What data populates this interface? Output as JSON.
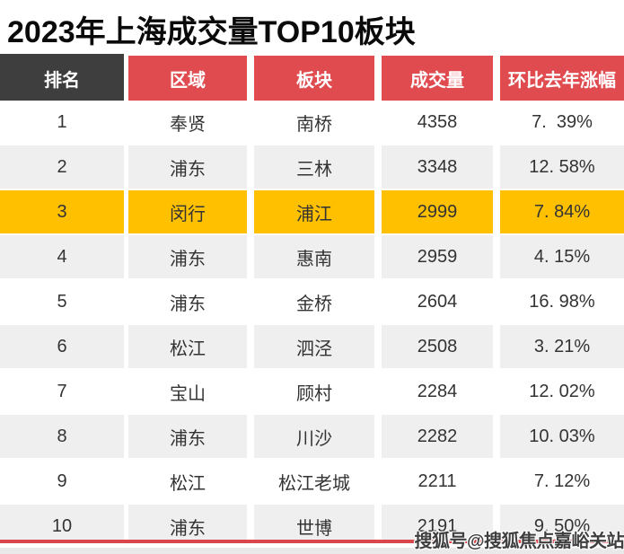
{
  "title": "2023年上海成交量TOP10板块",
  "table": {
    "headers": [
      "排名",
      "区域",
      "板块",
      "成交量",
      "环比去年涨幅"
    ],
    "rows": [
      {
        "rank": "1",
        "region": "奉贤",
        "sector": "南桥",
        "volume": "4358",
        "yoy": "7.  39%",
        "highlight": false
      },
      {
        "rank": "2",
        "region": "浦东",
        "sector": "三林",
        "volume": "3348",
        "yoy": "12. 58%",
        "highlight": false
      },
      {
        "rank": "3",
        "region": "闵行",
        "sector": "浦江",
        "volume": "2999",
        "yoy": "7. 84%",
        "highlight": true
      },
      {
        "rank": "4",
        "region": "浦东",
        "sector": "惠南",
        "volume": "2959",
        "yoy": "4. 15%",
        "highlight": false
      },
      {
        "rank": "5",
        "region": "浦东",
        "sector": "金桥",
        "volume": "2604",
        "yoy": "16. 98%",
        "highlight": false
      },
      {
        "rank": "6",
        "region": "松江",
        "sector": "泗泾",
        "volume": "2508",
        "yoy": "3. 21%",
        "highlight": false
      },
      {
        "rank": "7",
        "region": "宝山",
        "sector": "顾村",
        "volume": "2284",
        "yoy": "12. 02%",
        "highlight": false
      },
      {
        "rank": "8",
        "region": "浦东",
        "sector": "川沙",
        "volume": "2282",
        "yoy": "10. 03%",
        "highlight": false
      },
      {
        "rank": "9",
        "region": "松江",
        "sector": "松江老城",
        "volume": "2211",
        "yoy": "7. 12%",
        "highlight": false
      },
      {
        "rank": "10",
        "region": "浦东",
        "sector": "世博",
        "volume": "2191",
        "yoy": "9. 50%",
        "highlight": false
      }
    ]
  },
  "watermark": "搜狐号@搜狐焦点嘉峪关站",
  "colors": {
    "header_red": "#e04b50",
    "header_dark": "#3e3e3e",
    "highlight_gold": "#ffc000",
    "zebra_gray": "#efefef",
    "divider_red": "#d9474d",
    "bottom_strip_gray": "#e9e9e9"
  }
}
